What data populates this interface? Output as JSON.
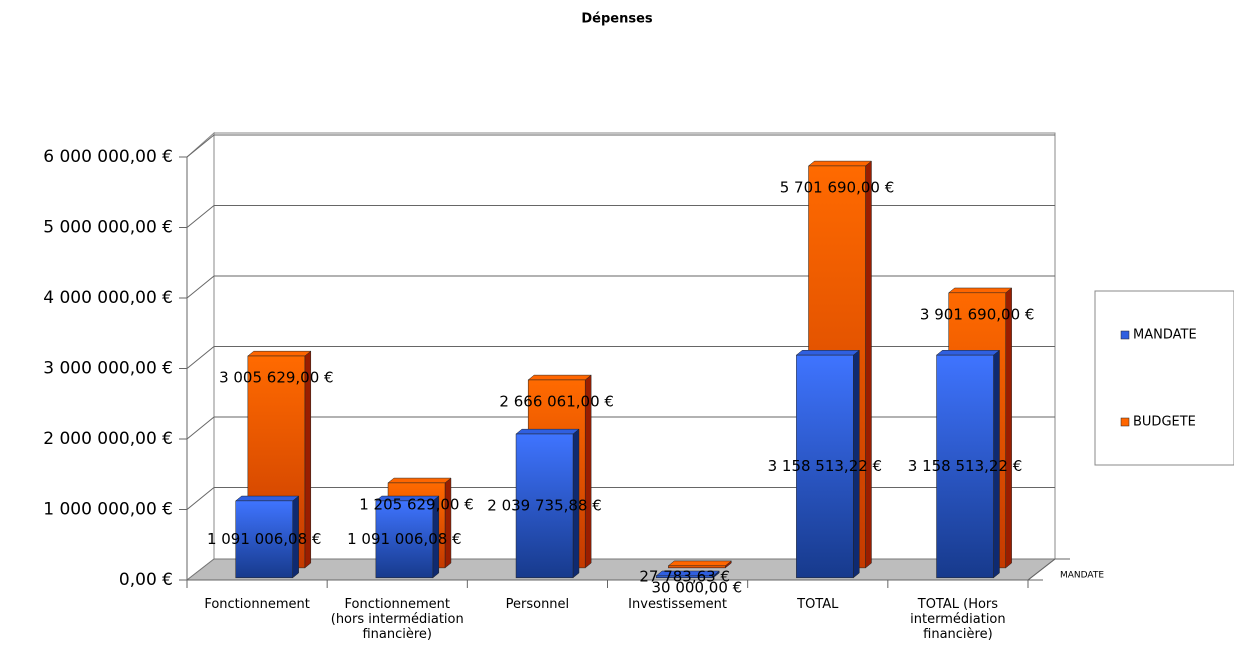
{
  "chart_data": {
    "type": "bar3d",
    "title": "Dépenses",
    "categories": [
      "Fonctionnement",
      "Fonctionnement (hors intermédiation financière)",
      "Personnel",
      "Investissement",
      "TOTAL",
      "TOTAL (Hors intermédiation financière)"
    ],
    "series": [
      {
        "name": "MANDATE",
        "color": "#2f5fe0",
        "values": [
          1091006.08,
          1091006.08,
          2039735.88,
          27783.63,
          3158513.22,
          3158513.22
        ],
        "value_labels": [
          "1 091 006,08 €",
          "1 091 006,08 €",
          "2 039 735,88 €",
          "27 783,63 €",
          "3 158 513,22 €",
          "3 158 513,22 €"
        ]
      },
      {
        "name": "BUDGETE",
        "color": "#ff6600",
        "values": [
          3005629,
          1205629,
          2666061,
          30000,
          5701690,
          3901690
        ],
        "value_labels": [
          "3 005 629,00 €",
          "1 205 629,00 €",
          "2 666 061,00 €",
          "30 000,00 €",
          "5 701 690,00 €",
          "3 901 690,00 €"
        ]
      }
    ],
    "ylim": [
      0,
      6000000
    ],
    "yticks": [
      {
        "value": 0,
        "label": "0,00 €"
      },
      {
        "value": 1000000,
        "label": "1 000 000,00 €"
      },
      {
        "value": 2000000,
        "label": "2 000 000,00 €"
      },
      {
        "value": 3000000,
        "label": "3 000 000,00 €"
      },
      {
        "value": 4000000,
        "label": "4 000 000,00 €"
      },
      {
        "value": 5000000,
        "label": "5 000 000,00 €"
      },
      {
        "value": 6000000,
        "label": "6 000 000,00 €"
      }
    ],
    "grid": true,
    "legend": "right"
  }
}
